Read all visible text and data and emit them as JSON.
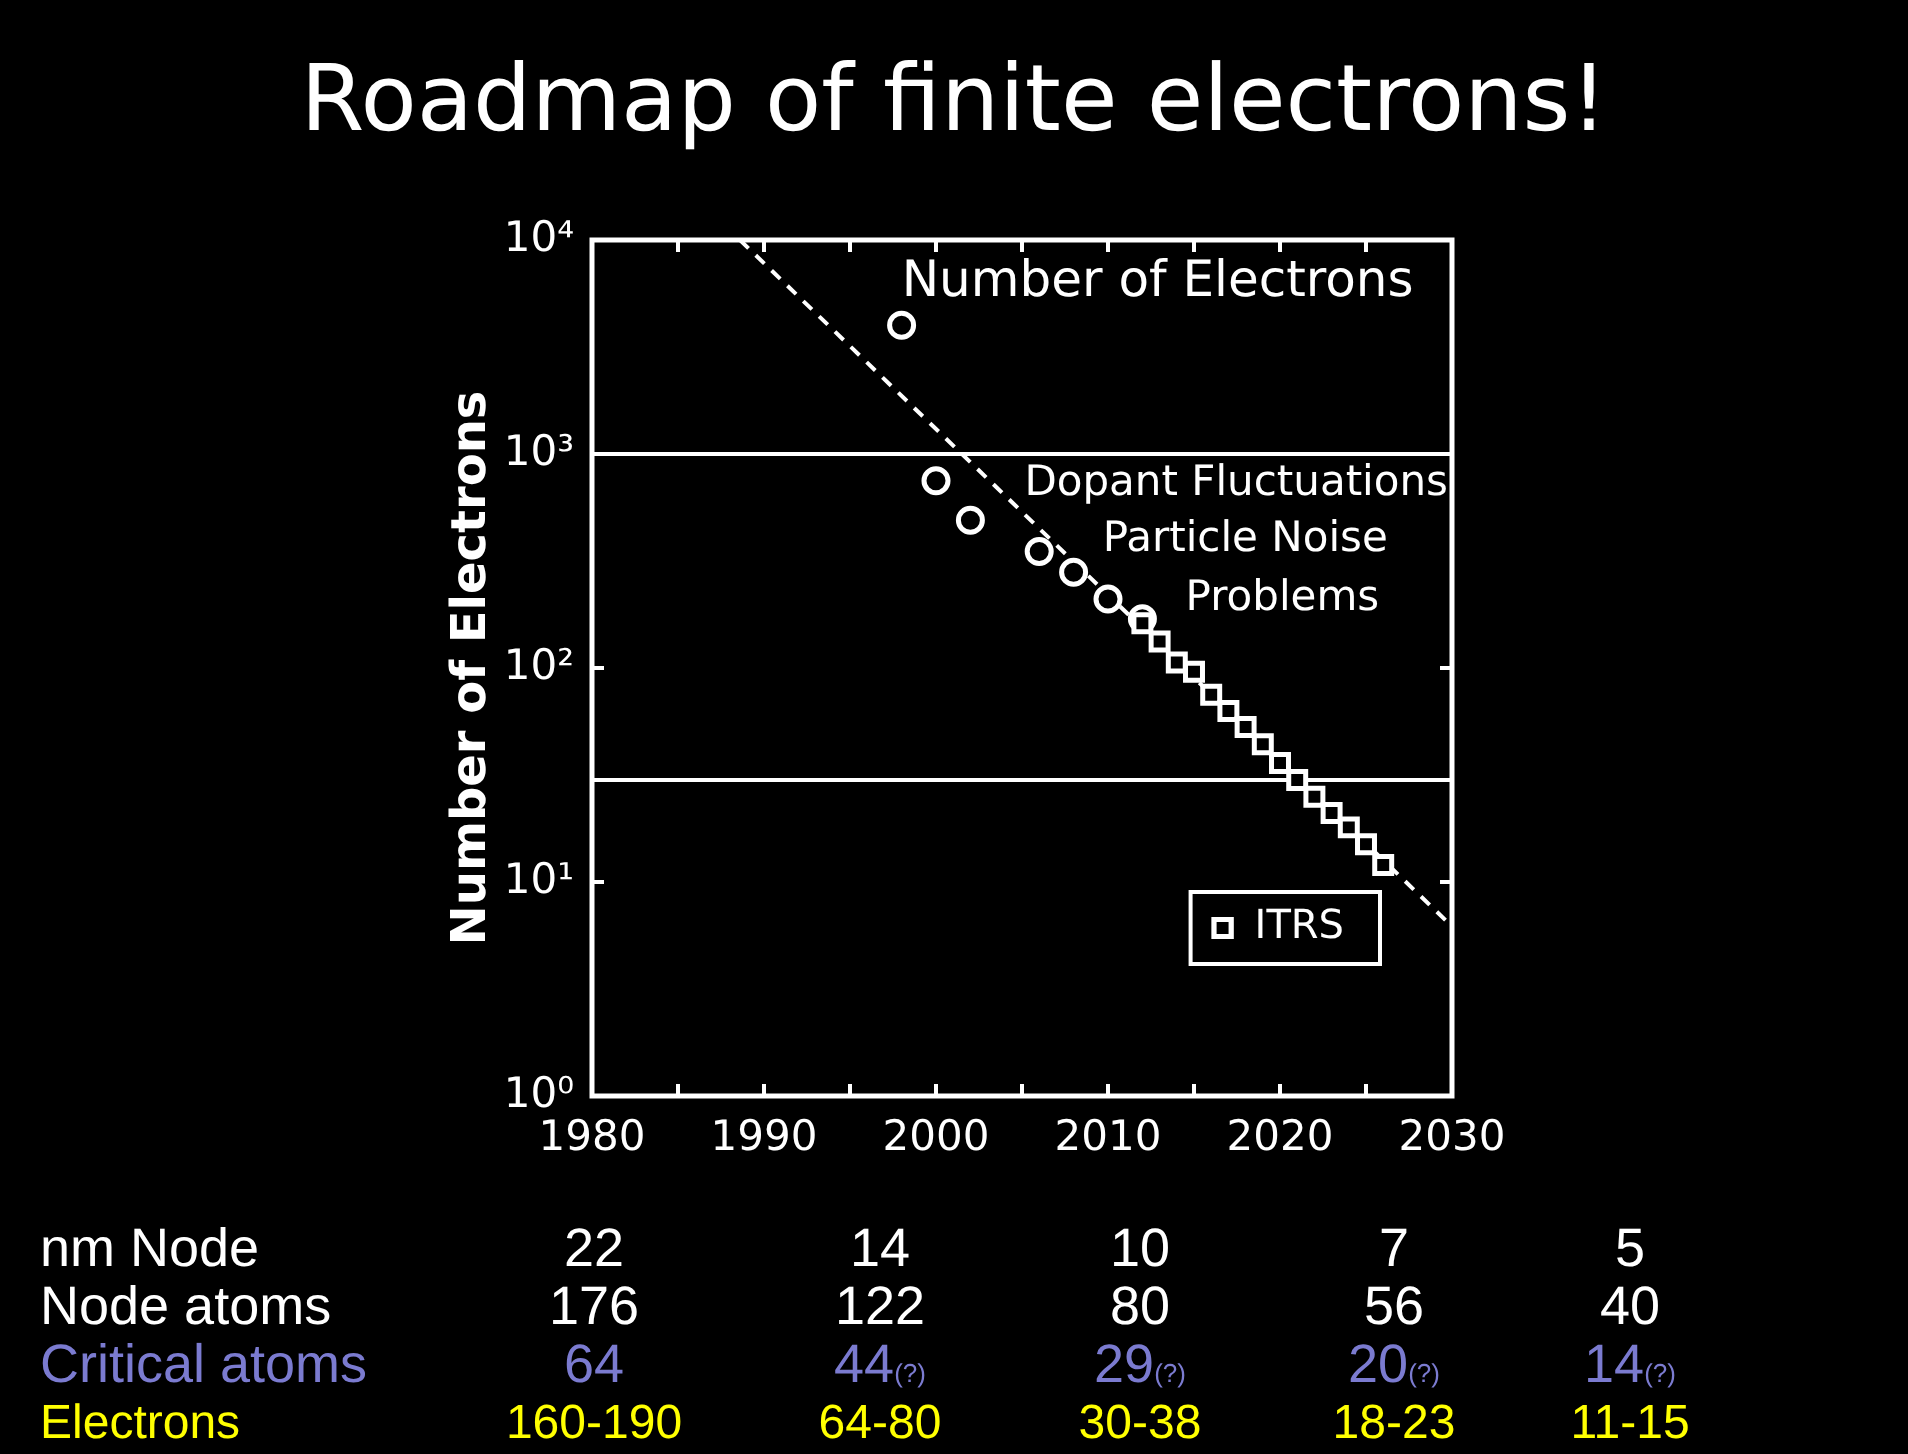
{
  "chart_data": [
    {
      "type": "scatter",
      "title": "Roadmap of finite electrons!",
      "ylabel": "Number of Electrons",
      "log": "y",
      "legend": "bottom right",
      "xlim": [
        1980,
        2030
      ],
      "xticks": [
        1980,
        {
          "value": 1985,
          "label": null
        },
        1990,
        {
          "value": 1995,
          "label": null
        },
        2000,
        {
          "value": 2005,
          "label": null
        },
        2010,
        {
          "value": 2015,
          "label": null
        },
        2020,
        {
          "value": 2025,
          "label": null
        },
        2030
      ],
      "ylim": [
        1,
        10000
      ],
      "yticks": [
        {
          "value": 1,
          "label": "10⁰"
        },
        {
          "value": 10,
          "label": "10¹"
        },
        {
          "value": 100,
          "label": "10²"
        },
        {
          "value": 1000,
          "label": "10³"
        },
        {
          "value": 10000,
          "label": "10⁴"
        }
      ],
      "ref_lines": [
        {
          "axis": "y",
          "value": 1000,
          "label": null,
          "color": "#ffffff"
        },
        {
          "axis": "y",
          "value": 30,
          "label": null,
          "color": "#ffffff"
        }
      ],
      "annotations": [
        "Number of Electrons",
        "Dopant Fluctuations",
        "Particle Noise",
        "Problems"
      ],
      "series": [
        {
          "name": "ITRS",
          "type": "scatter",
          "marker": "square",
          "color": "#ffffff",
          "x": [
            2012,
            2013,
            2014,
            2015,
            2016,
            2017,
            2018,
            2019,
            2020,
            2021,
            2022,
            2023,
            2024,
            2025,
            2026
          ],
          "values": [
            162,
            133,
            106,
            96,
            75,
            63,
            53,
            44,
            36,
            30,
            25,
            21,
            18,
            15,
            12
          ]
        },
        {
          "type": "scatter",
          "marker": "circle",
          "color": "#ffffff",
          "x": [
            1998,
            2000,
            2002,
            2006,
            2008,
            2010,
            2012
          ],
          "values": [
            4000,
            750,
            490,
            350,
            280,
            210,
            170
          ]
        },
        {
          "type": "line",
          "marker": "none",
          "line_style": "dashed",
          "color": "#ffffff",
          "x": [
            1988.6,
            2030
          ],
          "values": [
            10000,
            6.2
          ]
        }
      ]
    },
    {
      "type": "other",
      "colors": [
        "#ffffff",
        "#ffffff",
        "#7b7bd0",
        "#ffff00"
      ],
      "annotations": [
        "nm Node",
        "22",
        "14",
        "10",
        "7",
        "5",
        "Node atoms",
        "176",
        "122",
        "80",
        "56",
        "40",
        "Critical atoms",
        "64",
        "44$_{(?)}$",
        "29$_{(?)}$",
        "20$_{(?)}$",
        "14$_{(?)}$",
        "Electrons",
        "160-190",
        "64-80",
        "30-38",
        "18-23",
        "11-15"
      ]
    }
  ]
}
